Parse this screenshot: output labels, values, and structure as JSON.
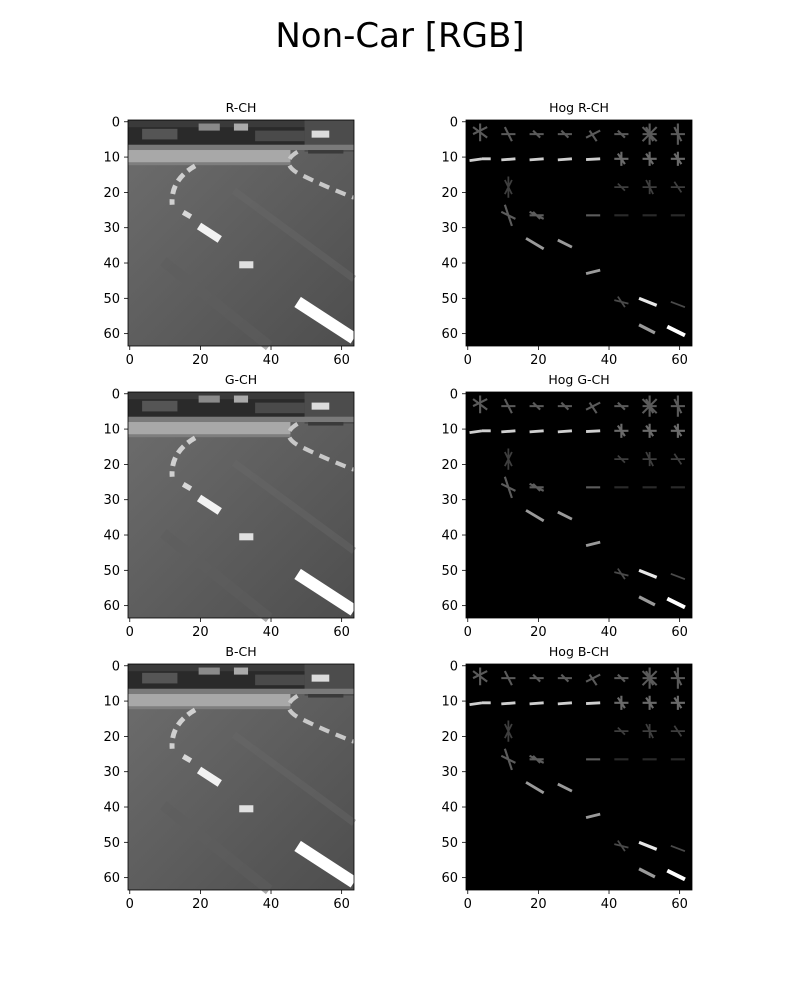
{
  "title": "Non-Car [RGB]",
  "panels": [
    {
      "title": "R-CH",
      "kind": "grayscale-image"
    },
    {
      "title": "Hog R-CH",
      "kind": "hog-image"
    },
    {
      "title": "G-CH",
      "kind": "grayscale-image"
    },
    {
      "title": "Hog G-CH",
      "kind": "hog-image"
    },
    {
      "title": "B-CH",
      "kind": "grayscale-image"
    },
    {
      "title": "Hog B-CH",
      "kind": "hog-image"
    }
  ],
  "chart_data": {
    "type": "heatmap",
    "title": "Non-Car [RGB]",
    "grid": false,
    "colormap": "gray",
    "image_size": [
      64,
      64
    ],
    "x_ticks": [
      0,
      20,
      40,
      60
    ],
    "y_ticks": [
      0,
      10,
      20,
      30,
      40,
      50,
      60
    ],
    "xlim": [
      -0.5,
      63.5
    ],
    "ylim": [
      63.5,
      -0.5
    ],
    "subplots": [
      "R-CH",
      "Hog R-CH",
      "G-CH",
      "Hog G-CH",
      "B-CH",
      "Hog B-CH"
    ]
  }
}
